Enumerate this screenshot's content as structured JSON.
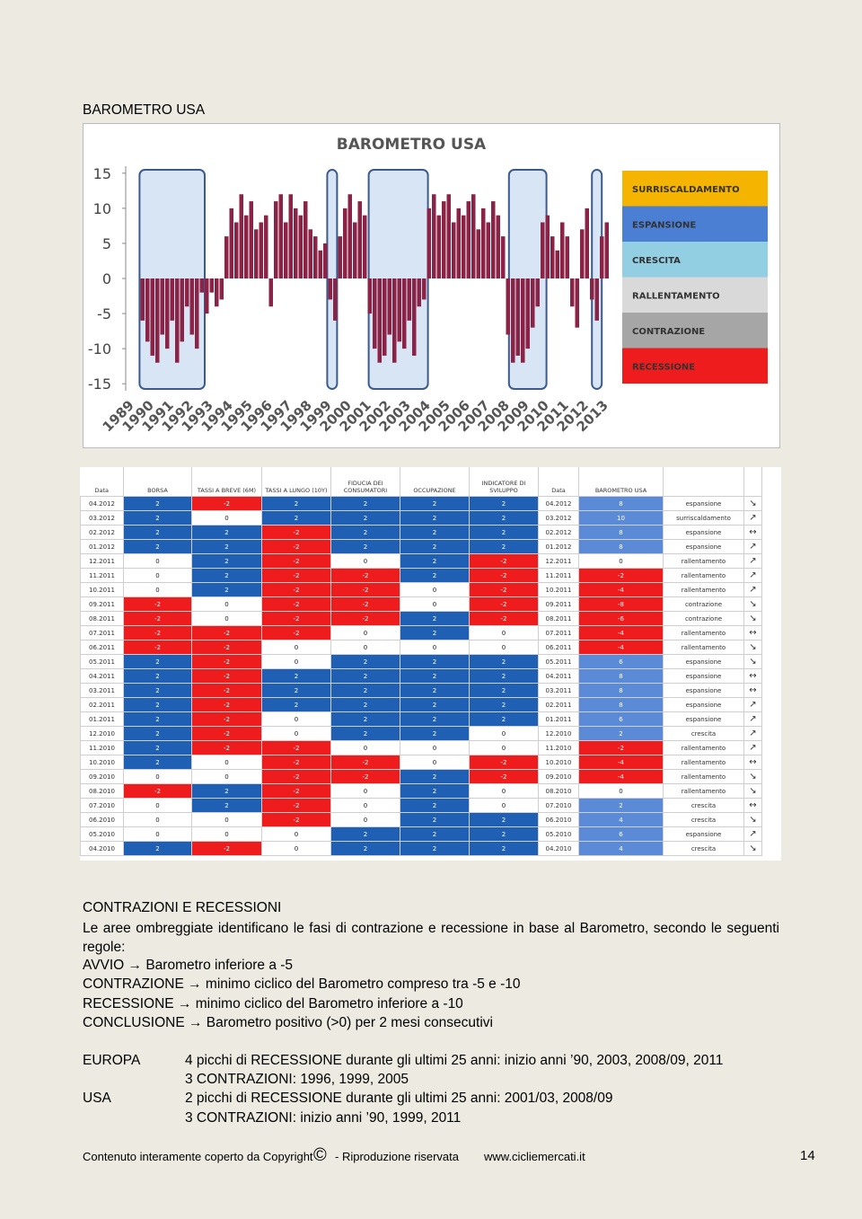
{
  "section_title": "BAROMETRO USA",
  "chart_data": {
    "type": "bar",
    "title": "BAROMETRO USA",
    "color": "#8b2346",
    "x": [
      1989.75,
      1990,
      1990.25,
      1990.5,
      1990.75,
      1991,
      1991.25,
      1991.5,
      1991.75,
      1992,
      1992.25,
      1992.5,
      1992.75,
      1993,
      1993.25,
      1993.5,
      1993.75,
      1994,
      1994.25,
      1994.5,
      1994.75,
      1995,
      1995.25,
      1995.5,
      1995.75,
      1996,
      1996.25,
      1996.5,
      1996.75,
      1997,
      1997.25,
      1997.5,
      1997.75,
      1998,
      1998.25,
      1998.5,
      1998.75,
      1999,
      1999.25,
      1999.5,
      1999.75,
      2000,
      2000.25,
      2000.5,
      2000.75,
      2001,
      2001.25,
      2001.5,
      2001.75,
      2002,
      2002.25,
      2002.5,
      2002.75,
      2003,
      2003.25,
      2003.5,
      2003.75,
      2004,
      2004.25,
      2004.5,
      2004.75,
      2005,
      2005.25,
      2005.5,
      2005.75,
      2006,
      2006.25,
      2006.5,
      2006.75,
      2007,
      2007.25,
      2007.5,
      2007.75,
      2008,
      2008.25,
      2008.5,
      2008.75,
      2009,
      2009.25,
      2009.5,
      2009.75,
      2010,
      2010.25,
      2010.5,
      2010.75,
      2011,
      2011.25,
      2011.5,
      2011.75,
      2012,
      2012.25,
      2012.5,
      2012.75,
      2013,
      2013.25
    ],
    "values": [
      -6,
      -9,
      -11,
      -12,
      -8,
      -10,
      -6,
      -12,
      -9,
      -4,
      -8,
      -10,
      -2,
      -5,
      -2,
      -4,
      -3,
      6,
      10,
      8,
      12,
      9,
      11,
      7,
      8,
      9,
      -4,
      11,
      12,
      8,
      12,
      10,
      9,
      11,
      7,
      6,
      4,
      5,
      -3,
      -6,
      6,
      10,
      12,
      8,
      11,
      9,
      -5,
      -10,
      -12,
      -11,
      -8,
      -12,
      -9,
      -10,
      -6,
      -11,
      -4,
      -3,
      10,
      12,
      9,
      11,
      12,
      8,
      10,
      9,
      11,
      12,
      7,
      10,
      8,
      11,
      9,
      6,
      -8,
      -12,
      -11,
      -12,
      -10,
      -7,
      -4,
      8,
      9,
      6,
      4,
      8,
      6,
      -4,
      -7,
      7,
      10,
      -3,
      -6,
      6,
      8
    ],
    "xlim": [
      1989,
      2014
    ],
    "ylim": [
      -16,
      16
    ],
    "xticks": [
      1989,
      1990,
      1991,
      1992,
      1993,
      1994,
      1995,
      1996,
      1997,
      1998,
      1999,
      2000,
      2001,
      2002,
      2003,
      2004,
      2005,
      2006,
      2007,
      2008,
      2009,
      2010,
      2011,
      2012,
      2013
    ],
    "yticks": [
      15,
      10,
      5,
      0,
      -5,
      -10,
      -15
    ],
    "shaded_ranges": [
      [
        1989.7,
        1993.0
      ],
      [
        1999.2,
        1999.7
      ],
      [
        2001.3,
        2004.3
      ],
      [
        2008.4,
        2010.3
      ],
      [
        2012.6,
        2013.1
      ]
    ],
    "phases": [
      {
        "name": "SURRISCALDAMENTO",
        "color": "#f5b400"
      },
      {
        "name": "ESPANSIONE",
        "color": "#4a7fd4"
      },
      {
        "name": "CRESCITA",
        "color": "#92cfe3"
      },
      {
        "name": "RALLENTAMENTO",
        "color": "#d9d9d9"
      },
      {
        "name": "CONTRAZIONE",
        "color": "#a6a6a6"
      },
      {
        "name": "RECESSIONE",
        "color": "#ee1c1c"
      }
    ]
  },
  "table": {
    "headers": [
      "Data",
      "BORSA",
      "TASSI A BREVE (6M)",
      "TASSI A LUNGO (10Y)",
      "FIDUCIA DEI CONSUMATORI",
      "OCCUPAZIONE",
      "INDICATORE DI SVILUPPO",
      "Data",
      "BAROMETRO USA"
    ],
    "rows": [
      [
        "04.2012",
        2,
        -2,
        2,
        2,
        2,
        2,
        "04.2012",
        8,
        "espansione",
        "↘"
      ],
      [
        "03.2012",
        2,
        0,
        2,
        2,
        2,
        2,
        "03.2012",
        10,
        "surriscaldamento",
        "↗"
      ],
      [
        "02.2012",
        2,
        2,
        -2,
        2,
        2,
        2,
        "02.2012",
        8,
        "espansione",
        "↔"
      ],
      [
        "01.2012",
        2,
        2,
        -2,
        2,
        2,
        2,
        "01.2012",
        8,
        "espansione",
        "↗"
      ],
      [
        "12.2011",
        0,
        2,
        -2,
        0,
        2,
        -2,
        "12.2011",
        0,
        "rallentamento",
        "↗"
      ],
      [
        "11.2011",
        0,
        2,
        -2,
        -2,
        2,
        -2,
        "11.2011",
        -2,
        "rallentamento",
        "↗"
      ],
      [
        "10.2011",
        0,
        2,
        -2,
        -2,
        0,
        -2,
        "10.2011",
        -4,
        "rallentamento",
        "↗"
      ],
      [
        "09.2011",
        -2,
        0,
        -2,
        -2,
        0,
        -2,
        "09.2011",
        -8,
        "contrazione",
        "↘"
      ],
      [
        "08.2011",
        -2,
        0,
        -2,
        -2,
        2,
        -2,
        "08.2011",
        -6,
        "contrazione",
        "↘"
      ],
      [
        "07.2011",
        -2,
        -2,
        -2,
        0,
        2,
        0,
        "07.2011",
        -4,
        "rallentamento",
        "↔"
      ],
      [
        "06.2011",
        -2,
        -2,
        0,
        0,
        0,
        0,
        "06.2011",
        -4,
        "rallentamento",
        "↘"
      ],
      [
        "05.2011",
        2,
        -2,
        0,
        2,
        2,
        2,
        "05.2011",
        6,
        "espansione",
        "↘"
      ],
      [
        "04.2011",
        2,
        -2,
        2,
        2,
        2,
        2,
        "04.2011",
        8,
        "espansione",
        "↔"
      ],
      [
        "03.2011",
        2,
        -2,
        2,
        2,
        2,
        2,
        "03.2011",
        8,
        "espansione",
        "↔"
      ],
      [
        "02.2011",
        2,
        -2,
        2,
        2,
        2,
        2,
        "02.2011",
        8,
        "espansione",
        "↗"
      ],
      [
        "01.2011",
        2,
        -2,
        0,
        2,
        2,
        2,
        "01.2011",
        6,
        "espansione",
        "↗"
      ],
      [
        "12.2010",
        2,
        -2,
        0,
        2,
        2,
        0,
        "12.2010",
        2,
        "crescita",
        "↗"
      ],
      [
        "11.2010",
        2,
        -2,
        -2,
        0,
        0,
        0,
        "11.2010",
        -2,
        "rallentamento",
        "↗"
      ],
      [
        "10.2010",
        2,
        0,
        -2,
        -2,
        0,
        -2,
        "10.2010",
        -4,
        "rallentamento",
        "↔"
      ],
      [
        "09.2010",
        0,
        0,
        -2,
        -2,
        2,
        -2,
        "09.2010",
        -4,
        "rallentamento",
        "↘"
      ],
      [
        "08.2010",
        -2,
        2,
        -2,
        0,
        2,
        0,
        "08.2010",
        0,
        "rallentamento",
        "↘"
      ],
      [
        "07.2010",
        0,
        2,
        -2,
        0,
        2,
        0,
        "07.2010",
        2,
        "crescita",
        "↔"
      ],
      [
        "06.2010",
        0,
        0,
        -2,
        0,
        2,
        2,
        "06.2010",
        4,
        "crescita",
        "↘"
      ],
      [
        "05.2010",
        0,
        0,
        0,
        2,
        2,
        2,
        "05.2010",
        6,
        "espansione",
        "↗"
      ],
      [
        "04.2010",
        2,
        -2,
        0,
        2,
        2,
        2,
        "04.2010",
        4,
        "crescita",
        "↘"
      ]
    ]
  },
  "notes": {
    "title": "CONTRAZIONI E RECESSIONI",
    "paragraph": "Le aree ombreggiate identificano le fasi di contrazione e recessione in base al Barometro, secondo le seguenti regole:",
    "rules": [
      "AVVIO → Barometro inferiore a -5",
      "CONTRAZIONE → minimo ciclico del Barometro compreso tra -5 e -10",
      "RECESSIONE → minimo ciclico del Barometro inferiore a -10",
      "CONCLUSIONE → Barometro positivo (>0) per 2 mesi consecutivi"
    ]
  },
  "regions": [
    {
      "name": "EUROPA",
      "lines": [
        "4 picchi di RECESSIONE durante gli ultimi 25 anni: inizio anni ’90, 2003, 2008/09, 2011",
        "3 CONTRAZIONI: 1996, 1999, 2005"
      ]
    },
    {
      "name": "USA",
      "lines": [
        "2 picchi di RECESSIONE durante gli ultimi 25 anni: 2001/03, 2008/09",
        "3 CONTRAZIONI: inizio anni ’90, 1999, 2011"
      ]
    }
  ],
  "footer": {
    "text": "Contenuto interamente coperto da Copyright",
    "symbol": "©",
    "rights": "- Riproduzione riservata",
    "site": "www.cicliemercati.it",
    "page": "14"
  }
}
